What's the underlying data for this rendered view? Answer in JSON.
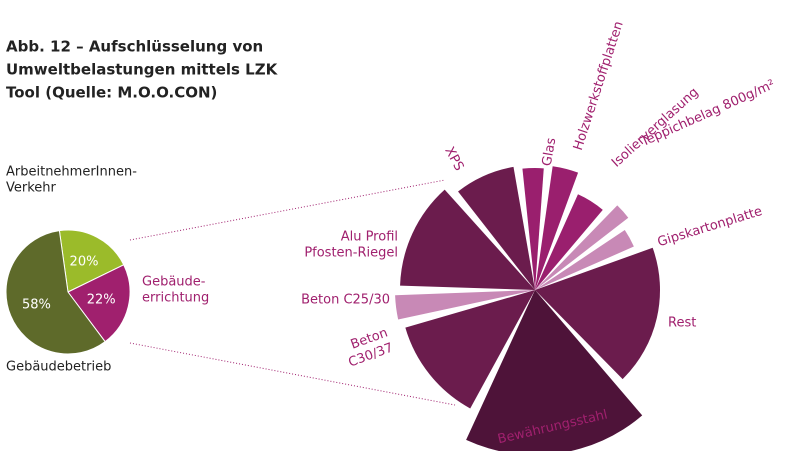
{
  "title": [
    "Abb. 12 – Aufschlüsselung von",
    "Umweltbelastungen mittels LZK",
    "Tool (Quelle: M.O.O.CON)"
  ],
  "chart_data": [
    {
      "type": "pie",
      "categories": [
        [
          "ArbeitnehmerInnen-",
          "Verkehr"
        ],
        [
          "Gebäude-",
          "errichtung"
        ],
        [
          "Gebäudebetrieb"
        ]
      ],
      "values": [
        20,
        22,
        58
      ],
      "value_labels": [
        "20%",
        "22%",
        "58%"
      ],
      "colors": [
        "#9bbb2a",
        "#a0206e",
        "#5e6a2a"
      ]
    },
    {
      "type": "polar",
      "categories": [
        [
          "XPS"
        ],
        [
          "Glas"
        ],
        [
          "Holzwerkstoffplatten"
        ],
        [
          "Isolierverglasung"
        ],
        [
          "Teppichbelag 800g/m²"
        ],
        [
          "Gipskartonplatte"
        ],
        [
          "Rest"
        ],
        [
          "Bewährungsstahl"
        ],
        [
          "Beton",
          "C30/37"
        ],
        [
          "Beton C25/30"
        ],
        [
          "Alu Profil",
          "Pfosten-Riegel"
        ]
      ],
      "values": [
        28,
        10,
        12,
        16,
        8,
        10,
        65,
        65,
        45,
        10,
        46
      ],
      "radii": [
        125,
        122,
        125,
        105,
        118,
        108,
        125,
        165,
        135,
        140,
        135
      ],
      "colors": [
        "#6b1c4d",
        "#9a1f6e",
        "#9a1f6e",
        "#9a1f6e",
        "#c889b6",
        "#c889b6",
        "#6b1c4d",
        "#4e1339",
        "#6b1c4d",
        "#c889b6",
        "#6b1c4d"
      ]
    }
  ]
}
